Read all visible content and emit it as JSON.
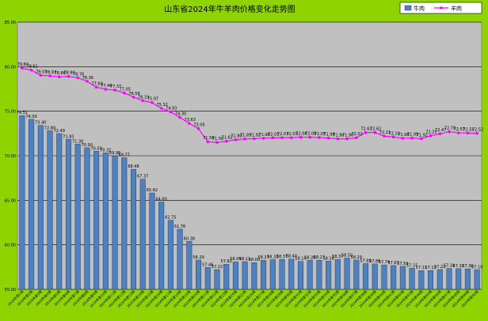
{
  "chart_data": {
    "type": "bar+line",
    "title": "山东省2024年牛羊肉价格变化走势图",
    "legend": {
      "position": "top-right",
      "entries": [
        "牛肉",
        "羊肉"
      ]
    },
    "y_ticks": [
      "85.00",
      "80.00",
      "75.00",
      "70.00",
      "65.00",
      "60.00",
      "55.00"
    ],
    "ylim": [
      55,
      85
    ],
    "grid": true,
    "categories": [
      "2024年第1周",
      "2024年第2周",
      "2024年第3周",
      "2024年第4周",
      "2024年第5周",
      "2024年第6周",
      "2024年第7周",
      "2024年第8周",
      "2024年第9周",
      "2024年第10周",
      "2024年第11周",
      "2024年第12周",
      "2024年第13周",
      "2024年第14周",
      "2024年第15周",
      "2024年第16周",
      "2024年第17周",
      "2024年第18周",
      "2024年第19周",
      "2024年第20周",
      "2024年第21周",
      "2024年第22周",
      "2024年第23周",
      "2024年第24周",
      "2024年第25周",
      "2024年第26周",
      "2024年第27周",
      "2024年第28周",
      "2024年第29周",
      "2024年第30周",
      "2024年第31周",
      "2024年第32周",
      "2024年第33周",
      "2024年第34周",
      "2024年第35周",
      "2024年第36周",
      "2024年第37周",
      "2024年第38周",
      "2024年第39周",
      "2024年第40周",
      "2024年第41周",
      "2024年第42周",
      "2024年第43周",
      "2024年第44周",
      "2024年第45周",
      "2024年第46周",
      "2024年第47周",
      "2024年第48周",
      "2024年第49周",
      "2024年第50周"
    ],
    "series": [
      {
        "name": "牛肉",
        "type": "bar",
        "color": "#4f81bd",
        "values": [
          74.51,
          74.09,
          73.4,
          72.8,
          72.49,
          71.83,
          71.3,
          70.9,
          70.5,
          70.32,
          69.98,
          69.77,
          68.48,
          67.37,
          65.82,
          64.8,
          62.75,
          61.76,
          60.38,
          58.29,
          57.46,
          57.22,
          57.82,
          58.09,
          58.11,
          58.0,
          58.27,
          58.33,
          58.37,
          58.4,
          58.14,
          58.26,
          58.27,
          58.16,
          58.37,
          58.5,
          58.29,
          57.89,
          57.85,
          57.74,
          57.67,
          57.59,
          57.37,
          57.11,
          57.11,
          57.22,
          57.34,
          57.32,
          57.3,
          57.19
        ]
      },
      {
        "name": "羊肉",
        "type": "line",
        "color": "#ff00ff",
        "values": [
          79.84,
          79.61,
          79.03,
          78.97,
          78.86,
          78.9,
          78.76,
          78.36,
          77.69,
          77.46,
          77.37,
          77.05,
          76.58,
          76.19,
          75.97,
          75.32,
          74.93,
          74.3,
          73.63,
          73.05,
          71.58,
          71.5,
          71.62,
          71.8,
          71.89,
          71.92,
          71.96,
          72.01,
          72.03,
          72.03,
          72.08,
          72.08,
          72.05,
          71.98,
          71.9,
          71.9,
          72.02,
          72.61,
          72.62,
          72.21,
          72.1,
          71.96,
          71.99,
          71.92,
          72.25,
          72.47,
          72.7,
          72.57,
          72.55,
          72.52
        ]
      }
    ]
  }
}
